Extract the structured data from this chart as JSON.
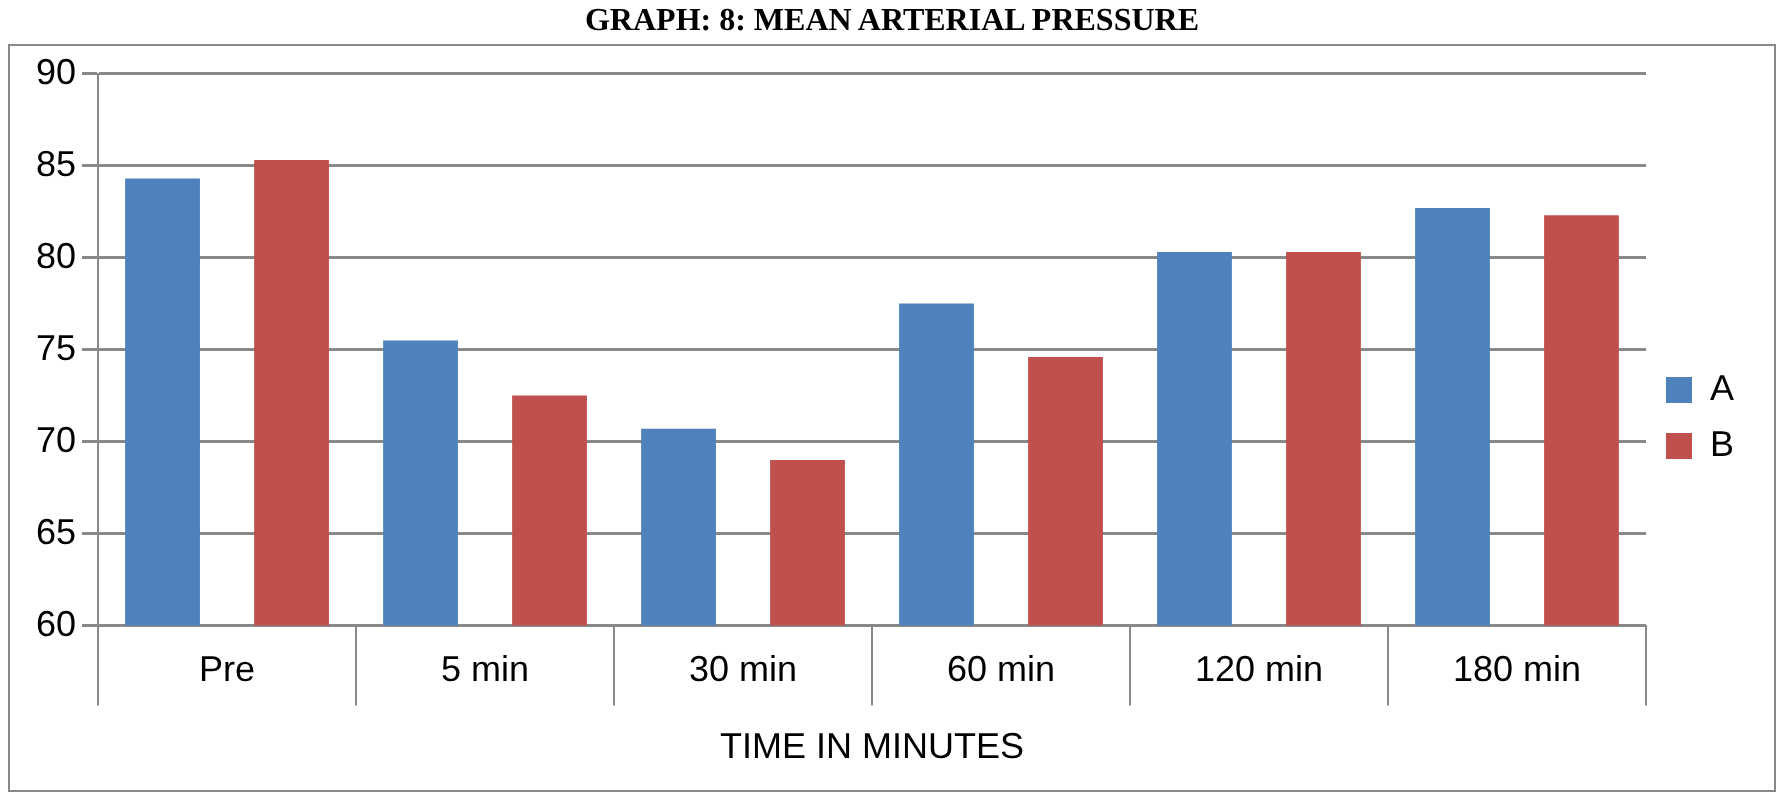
{
  "chart_data": {
    "type": "bar",
    "title": "GRAPH: 8: MEAN ARTERIAL PRESSURE",
    "xlabel": "TIME IN MINUTES",
    "categories": [
      "Pre",
      "5 min",
      "30 min",
      "60 min",
      "120 min",
      "180 min"
    ],
    "series": [
      {
        "name": "A",
        "color": "#4f81bd",
        "values": [
          84.3,
          75.5,
          70.7,
          77.5,
          80.3,
          82.7
        ]
      },
      {
        "name": "B",
        "color": "#c0504d",
        "values": [
          85.3,
          72.5,
          69.0,
          74.6,
          80.3,
          82.3
        ]
      }
    ],
    "ylim": [
      60,
      90
    ],
    "yticks": [
      60,
      65,
      70,
      75,
      80,
      85,
      90
    ],
    "grid": "y",
    "legend": "right"
  }
}
